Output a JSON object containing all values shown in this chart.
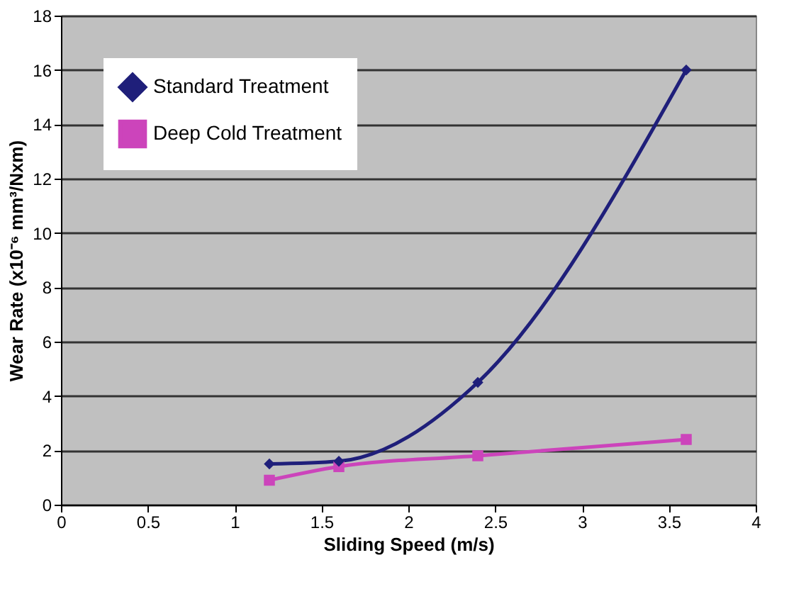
{
  "chart_data": {
    "type": "line",
    "xlabel": "Sliding Speed (m/s)",
    "ylabel": "Wear Rate (x10⁻⁶ mm³/Nxm)",
    "xlim": [
      0,
      4
    ],
    "xticks": [
      0,
      0.5,
      1,
      1.5,
      2,
      2.5,
      3,
      3.5,
      4
    ],
    "ylim": [
      0,
      18
    ],
    "yticks": [
      0,
      2,
      4,
      6,
      8,
      10,
      12,
      14,
      16,
      18
    ],
    "grid": "y",
    "legend": "top left",
    "line_style": "solid",
    "series": [
      {
        "name": "Standard Treatment",
        "color": "#1f1f7a",
        "marker": "diamond",
        "x": [
          1.2,
          1.6,
          2.4,
          3.6
        ],
        "values": [
          1.5,
          1.6,
          4.5,
          16
        ]
      },
      {
        "name": "Deep Cold Treatment",
        "color": "#cc44bb",
        "marker": "square",
        "x": [
          1.2,
          1.6,
          2.4,
          3.6
        ],
        "values": [
          0.9,
          1.4,
          1.8,
          2.4
        ]
      }
    ]
  }
}
